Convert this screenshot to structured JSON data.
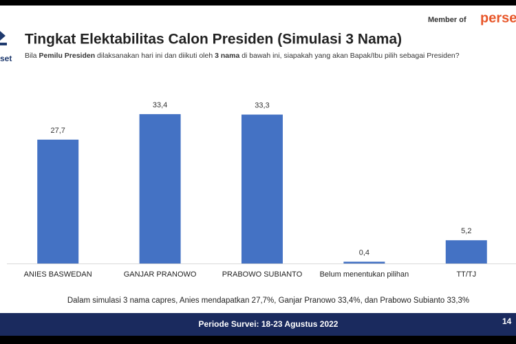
{
  "chart_data": {
    "type": "bar",
    "title": "Tingkat Elektabilitas Calon Presiden (Simulasi 3 Nama)",
    "subtitle": [
      "Bila ",
      "Pemilu Presiden",
      " dilaksanakan hari ini dan diikuti oleh ",
      "3 nama",
      " di bawah ini, siapakah yang akan Bapak/Ibu pilih sebagai Presiden?"
    ],
    "categories": [
      "ANIES BASWEDAN",
      "GANJAR PRANOWO",
      "PRABOWO SUBIANTO",
      "Belum menentukan pilihan",
      "TT/TJ"
    ],
    "values": [
      27.7,
      33.4,
      33.3,
      0.4,
      5.2
    ],
    "value_labels": [
      "27,7",
      "33,4",
      "33,3",
      "0,4",
      "5,2"
    ],
    "color": "#4472c4",
    "note": "Dalam simulasi 3 nama capres, Anies mendapatkan 27,7%, Ganjar Pranowo 33,4%, dan Prabowo Subianto 33,3%"
  },
  "header": {
    "member_of": "Member of",
    "member_logo": "perse",
    "logo_text": "set"
  },
  "footer": {
    "period": "Periode Survei: 18-23 Agustus 2022",
    "page": "14"
  }
}
